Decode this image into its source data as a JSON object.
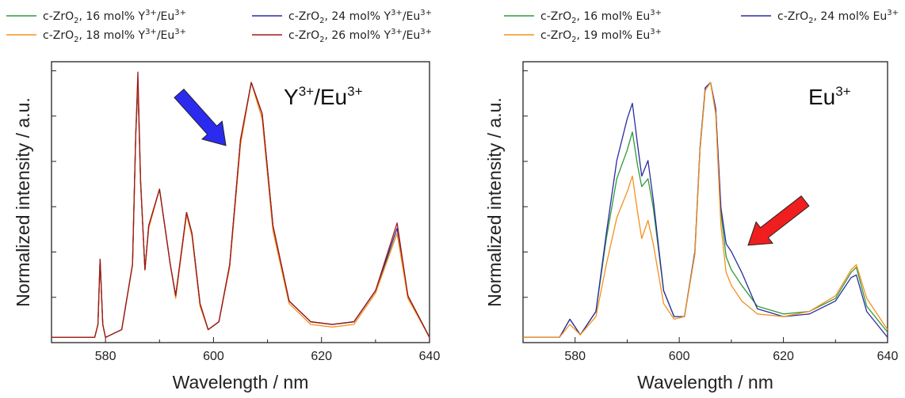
{
  "chart_data": [
    {
      "type": "line",
      "panel_label": {
        "base": "Y",
        "sup1": "3+",
        "mid": "/Eu",
        "sup2": "3+"
      },
      "xlabel": "Wavelength / nm",
      "ylabel": "Normalized intensity / a.u.",
      "xlim": [
        570,
        640
      ],
      "ylim": [
        0,
        1.08
      ],
      "xticks": [
        580,
        600,
        620,
        640
      ],
      "ytick_labels_shown": false,
      "arrow": {
        "color": "#2b2bf0",
        "points_to_x": 604.5
      },
      "legend": {
        "placement": "top",
        "columns": 2
      },
      "series": [
        {
          "name": {
            "pre": "c-ZrO",
            "sub": "2",
            "mid": ", 16 mol% Y",
            "sup1": "3+",
            "mid2": "/Eu",
            "sup2": "3+"
          },
          "color": "#2e9a3a",
          "x": [
            570,
            578,
            578.6,
            579,
            579.5,
            580,
            583,
            585,
            585.6,
            586,
            586.5,
            587.3,
            588,
            590,
            592,
            593,
            595,
            596,
            597.5,
            599,
            601,
            603,
            605,
            607,
            609,
            611,
            614,
            618,
            622,
            626,
            630,
            634,
            636,
            640
          ],
          "y": [
            0.02,
            0.02,
            0.07,
            0.32,
            0.07,
            0.02,
            0.05,
            0.3,
            0.8,
            1.0,
            0.62,
            0.28,
            0.45,
            0.59,
            0.3,
            0.18,
            0.5,
            0.42,
            0.15,
            0.05,
            0.08,
            0.3,
            0.78,
            1.0,
            0.88,
            0.45,
            0.16,
            0.08,
            0.07,
            0.08,
            0.2,
            0.42,
            0.18,
            0.02
          ]
        },
        {
          "name": {
            "pre": "c-ZrO",
            "sub": "2",
            "mid": ", 24 mol% Y",
            "sup1": "3+",
            "mid2": "/Eu",
            "sup2": "3+"
          },
          "color": "#2a2ba0",
          "x": [
            570,
            578,
            578.6,
            579,
            579.5,
            580,
            583,
            585,
            585.6,
            586,
            586.5,
            587.3,
            588,
            590,
            592,
            593,
            595,
            596,
            597.5,
            599,
            601,
            603,
            605,
            607,
            609,
            611,
            614,
            618,
            622,
            626,
            630,
            634,
            636,
            640
          ],
          "y": [
            0.02,
            0.02,
            0.07,
            0.32,
            0.07,
            0.02,
            0.05,
            0.3,
            0.8,
            0.98,
            0.62,
            0.28,
            0.45,
            0.59,
            0.3,
            0.18,
            0.5,
            0.42,
            0.15,
            0.05,
            0.08,
            0.3,
            0.78,
            1.0,
            0.88,
            0.45,
            0.16,
            0.08,
            0.07,
            0.08,
            0.2,
            0.44,
            0.18,
            0.02
          ]
        },
        {
          "name": {
            "pre": "c-ZrO",
            "sub": "2",
            "mid": ", 18 mol% Y",
            "sup1": "3+",
            "mid2": "/Eu",
            "sup2": "3+"
          },
          "color": "#f5901e",
          "x": [
            570,
            578,
            578.6,
            579,
            579.5,
            580,
            583,
            585,
            585.6,
            586,
            586.5,
            587.3,
            588,
            590,
            592,
            593,
            595,
            596,
            597.5,
            599,
            601,
            603,
            605,
            607,
            609,
            611,
            614,
            618,
            622,
            626,
            630,
            634,
            636,
            640
          ],
          "y": [
            0.02,
            0.02,
            0.07,
            0.32,
            0.07,
            0.02,
            0.05,
            0.3,
            0.8,
            1.0,
            0.62,
            0.28,
            0.44,
            0.59,
            0.3,
            0.17,
            0.49,
            0.41,
            0.14,
            0.05,
            0.08,
            0.29,
            0.76,
            1.0,
            0.86,
            0.43,
            0.15,
            0.07,
            0.06,
            0.07,
            0.19,
            0.42,
            0.17,
            0.02
          ]
        },
        {
          "name": {
            "pre": "c-ZrO",
            "sub": "2",
            "mid": ", 26 mol% Y",
            "sup1": "3+",
            "mid2": "/Eu",
            "sup2": "3+"
          },
          "color": "#a01818",
          "x": [
            570,
            578,
            578.6,
            579,
            579.5,
            580,
            583,
            585,
            585.6,
            586,
            586.5,
            587.3,
            588,
            590,
            592,
            593,
            595,
            596,
            597.5,
            599,
            601,
            603,
            605,
            607,
            609,
            611,
            614,
            618,
            622,
            626,
            630,
            634,
            636,
            640
          ],
          "y": [
            0.02,
            0.02,
            0.07,
            0.32,
            0.07,
            0.02,
            0.05,
            0.3,
            0.8,
            1.04,
            0.62,
            0.28,
            0.45,
            0.59,
            0.3,
            0.18,
            0.5,
            0.42,
            0.15,
            0.05,
            0.08,
            0.3,
            0.78,
            1.0,
            0.88,
            0.45,
            0.16,
            0.08,
            0.07,
            0.08,
            0.2,
            0.46,
            0.18,
            0.02
          ]
        }
      ]
    },
    {
      "type": "line",
      "panel_label": {
        "base": "Eu",
        "sup1": "3+"
      },
      "xlabel": "Wavelength / nm",
      "ylabel": "Normalized intensity / a.u.",
      "xlim": [
        570,
        640
      ],
      "ylim": [
        0,
        1.08
      ],
      "xticks": [
        580,
        600,
        620,
        640
      ],
      "ytick_labels_shown": false,
      "arrow": {
        "color": "#f01e1e",
        "points_to_x": 613
      },
      "legend": {
        "placement": "top",
        "columns": 2
      },
      "series": [
        {
          "name": {
            "pre": "c-ZrO",
            "sub": "2",
            "mid": ", 16 mol% Eu",
            "sup1": "3+"
          },
          "color": "#2e9a3a",
          "x": [
            570,
            577,
            579,
            581,
            584,
            586,
            588,
            590,
            591,
            592,
            592.8,
            594,
            595,
            597,
            599,
            601,
            603,
            604,
            605,
            606,
            607,
            608,
            609,
            610,
            612,
            615,
            620,
            625,
            630,
            633,
            634,
            636,
            640
          ],
          "y": [
            0.02,
            0.02,
            0.09,
            0.03,
            0.12,
            0.4,
            0.63,
            0.74,
            0.81,
            0.68,
            0.6,
            0.63,
            0.52,
            0.2,
            0.1,
            0.1,
            0.35,
            0.75,
            0.98,
            1.0,
            0.9,
            0.5,
            0.33,
            0.28,
            0.22,
            0.14,
            0.11,
            0.12,
            0.17,
            0.27,
            0.29,
            0.14,
            0.04
          ]
        },
        {
          "name": {
            "pre": "c-ZrO",
            "sub": "2",
            "mid": ", 24 mol% Eu",
            "sup1": "3+"
          },
          "color": "#2a2ba0",
          "x": [
            570,
            577,
            579,
            581,
            584,
            586,
            588,
            590,
            591,
            592,
            592.8,
            594,
            595,
            597,
            599,
            601,
            603,
            604,
            605,
            606,
            607,
            608,
            609,
            610,
            612,
            615,
            620,
            625,
            630,
            633,
            634,
            636,
            640
          ],
          "y": [
            0.02,
            0.02,
            0.09,
            0.03,
            0.12,
            0.42,
            0.7,
            0.86,
            0.92,
            0.76,
            0.64,
            0.7,
            0.55,
            0.2,
            0.1,
            0.1,
            0.35,
            0.75,
            0.98,
            1.0,
            0.9,
            0.52,
            0.38,
            0.35,
            0.27,
            0.13,
            0.1,
            0.11,
            0.16,
            0.25,
            0.26,
            0.12,
            0.02
          ]
        },
        {
          "name": {
            "pre": "c-ZrO",
            "sub": "2",
            "mid": ", 19 mol% Eu",
            "sup1": "3+"
          },
          "color": "#f5901e",
          "x": [
            570,
            577,
            579,
            581,
            584,
            586,
            588,
            590,
            591,
            592,
            592.8,
            594,
            595,
            597,
            599,
            601,
            603,
            604,
            605,
            606,
            607,
            608,
            609,
            610,
            612,
            615,
            620,
            625,
            630,
            633,
            634,
            636,
            640
          ],
          "y": [
            0.02,
            0.02,
            0.07,
            0.03,
            0.1,
            0.3,
            0.48,
            0.58,
            0.64,
            0.5,
            0.4,
            0.47,
            0.38,
            0.15,
            0.09,
            0.1,
            0.34,
            0.74,
            0.97,
            1.0,
            0.88,
            0.45,
            0.27,
            0.22,
            0.16,
            0.11,
            0.1,
            0.12,
            0.18,
            0.28,
            0.3,
            0.17,
            0.05
          ]
        }
      ]
    }
  ]
}
